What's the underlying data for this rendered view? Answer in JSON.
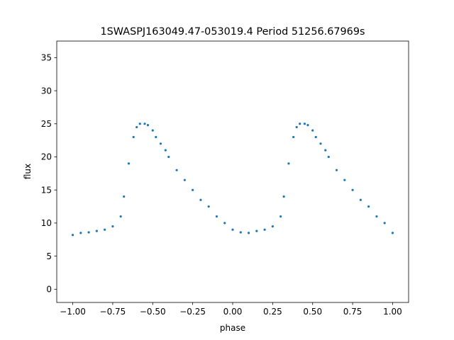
{
  "chart_data": {
    "type": "scatter",
    "title": "1SWASPJ163049.47-053019.4 Period 51256.67969s",
    "xlabel": "phase",
    "ylabel": "flux",
    "xlim": [
      -1.1,
      1.1
    ],
    "ylim": [
      -2,
      37.5
    ],
    "xticks": [
      -1.0,
      -0.75,
      -0.5,
      -0.25,
      0.0,
      0.25,
      0.5,
      0.75,
      1.0
    ],
    "xtick_labels": [
      "−1.00",
      "−0.75",
      "−0.50",
      "−0.25",
      "0.00",
      "0.25",
      "0.50",
      "0.75",
      "1.00"
    ],
    "yticks": [
      0,
      5,
      10,
      15,
      20,
      25,
      30,
      35
    ],
    "ytick_labels": [
      "0",
      "5",
      "10",
      "15",
      "20",
      "25",
      "30",
      "35"
    ],
    "grid": false,
    "legend": "none",
    "point_color": "#1f77b4",
    "series": [
      {
        "values_note": "phase-folded light curve, sampled points (phase, flux); pattern repeats with period 1 in phase",
        "x": [
          -1.0,
          -0.95,
          -0.9,
          -0.85,
          -0.8,
          -0.75,
          -0.7,
          -0.68,
          -0.65,
          -0.62,
          -0.6,
          -0.58,
          -0.55,
          -0.53,
          -0.5,
          -0.48,
          -0.45,
          -0.42,
          -0.4,
          -0.35,
          -0.3,
          -0.25,
          -0.2,
          -0.15,
          -0.1,
          -0.05,
          0.0,
          0.05,
          0.1,
          0.15,
          0.2,
          0.25,
          0.3,
          0.32,
          0.35,
          0.38,
          0.4,
          0.42,
          0.45,
          0.47,
          0.5,
          0.52,
          0.55,
          0.58,
          0.6,
          0.65,
          0.7,
          0.75,
          0.8,
          0.85,
          0.9,
          0.95,
          1.0
        ],
        "y": [
          8.2,
          8.5,
          8.6,
          8.8,
          9.0,
          9.5,
          11.0,
          14.0,
          19.0,
          23.0,
          24.5,
          25.0,
          25.0,
          24.8,
          24.0,
          23.0,
          22.0,
          21.0,
          20.0,
          18.0,
          16.5,
          15.0,
          13.5,
          12.5,
          11.0,
          10.0,
          9.0,
          8.6,
          8.5,
          8.8,
          9.0,
          9.5,
          11.0,
          14.0,
          19.0,
          23.0,
          24.5,
          25.0,
          25.0,
          24.8,
          24.0,
          23.0,
          22.0,
          21.0,
          20.0,
          18.0,
          16.5,
          15.0,
          13.5,
          12.5,
          11.0,
          10.0,
          8.5
        ]
      }
    ]
  }
}
